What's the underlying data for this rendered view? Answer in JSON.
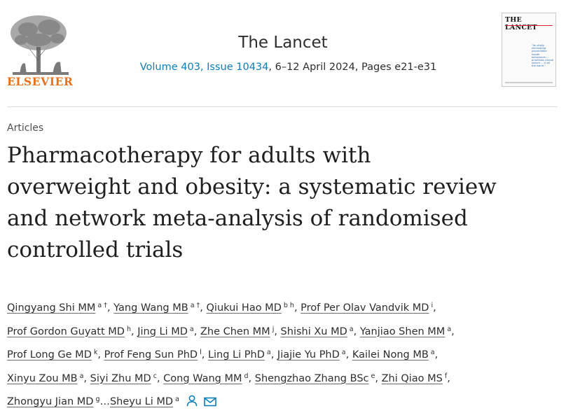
{
  "header": {
    "publisher_logo_text": "ELSEVIER",
    "journal_title": "The Lancet",
    "issue_link": "Volume 403, Issue 10434",
    "issue_rest": ", 6–12 April 2024, Pages e21-e31",
    "cover_title": "THE LANCET",
    "cover_tagline": "\"Its vitally eliminating preventable health behaviours ... prioritises clinical nature ... in all the world.\""
  },
  "article": {
    "type": "Articles",
    "title_lines": [
      "Pharmacotherapy for adults with",
      "overweight and obesity: a systematic review",
      "and network meta-analysis of randomised",
      "controlled trials"
    ]
  },
  "authors": [
    {
      "name": "Qingyang Shi MM",
      "sup": "a †",
      "sep": ","
    },
    {
      "name": "Yang Wang MB",
      "sup": "a †",
      "sep": ","
    },
    {
      "name": "Qiukui Hao MD",
      "sup": "b h",
      "sep": ","
    },
    {
      "name": "Prof Per Olav Vandvik MD",
      "sup": "i",
      "sep": ","
    },
    {
      "name": "Prof Gordon Guyatt MD",
      "sup": "h",
      "sep": ","
    },
    {
      "name": "Jing Li MD",
      "sup": "a",
      "sep": ","
    },
    {
      "name": "Zhe Chen MM",
      "sup": "j",
      "sep": ","
    },
    {
      "name": "Shishi Xu MD",
      "sup": "a",
      "sep": ","
    },
    {
      "name": "Yanjiao Shen MM",
      "sup": "a",
      "sep": ","
    },
    {
      "name": "Prof Long Ge MD",
      "sup": "k",
      "sep": ","
    },
    {
      "name": "Prof Feng Sun PhD",
      "sup": "l",
      "sep": ","
    },
    {
      "name": "Ling Li PhD",
      "sup": "a",
      "sep": ","
    },
    {
      "name": "Jiajie Yu PhD",
      "sup": "a",
      "sep": ","
    },
    {
      "name": "Kailei Nong MB",
      "sup": "a",
      "sep": ","
    },
    {
      "name": "Xinyu Zou MB",
      "sup": "a",
      "sep": ","
    },
    {
      "name": "Siyi Zhu MD",
      "sup": "c",
      "sep": ","
    },
    {
      "name": "Cong Wang MM",
      "sup": "d",
      "sep": ","
    },
    {
      "name": "Shengzhao Zhang BSc",
      "sup": "e",
      "sep": ","
    },
    {
      "name": "Zhi Qiao MS",
      "sup": "f",
      "sep": ","
    },
    {
      "name": "Zhongyu Jian MD",
      "sup": "g",
      "sep": "…"
    },
    {
      "name": "Sheyu Li MD",
      "sup": "a",
      "sep": ""
    }
  ],
  "icons": {
    "person": "person-icon",
    "mail": "mail-icon"
  },
  "colors": {
    "link": "#0c7dbb",
    "elsevier_orange": "#e9711c",
    "text": "#2e2e2e"
  }
}
